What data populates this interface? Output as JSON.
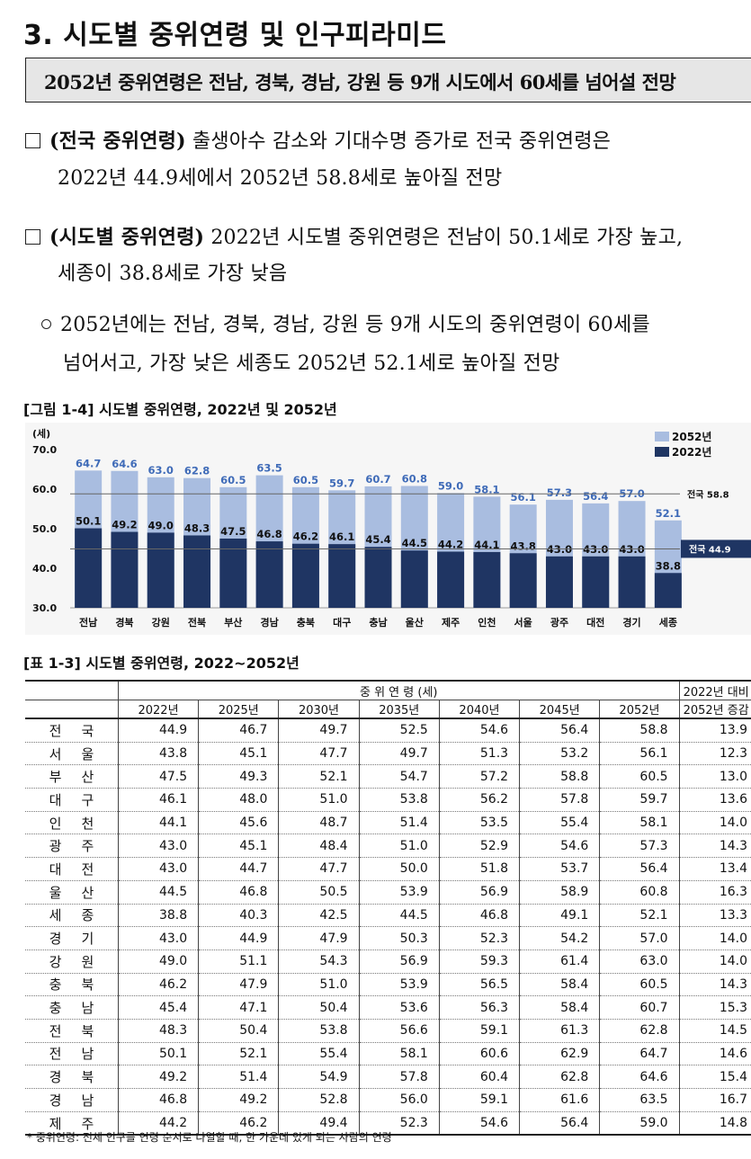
{
  "section_title": "3. 시도별 중위연령 및 인구피라미드",
  "summary": "2052년 중위연령은 전남, 경북, 경남, 강원 등 9개 시도에서 60세를 넘어설 전망",
  "p1": {
    "head": "(전국 중위연령)",
    "line1": " 출생아수 감소와 기대수명 증가로 전국 중위연령은",
    "line2": "2022년 44.9세에서 2052년 58.8세로 높아질 전망"
  },
  "p2": {
    "head": "(시도별 중위연령)",
    "line1": " 2022년 시도별 중위연령은 전남이 50.1세로 가장 높고,",
    "line2": "세종이 38.8세로 가장 낮음"
  },
  "p3": {
    "line1": "2052년에는 전남, 경북, 경남, 강원 등 9개 시도의 중위연령이 60세를",
    "line2": "넘어서고, 가장 낮은 세종도 2052년 52.1세로 높아질 전망"
  },
  "figure_title": "[그림 1-4] 시도별 중위연령, 2022년 및 2052년",
  "chart_data": {
    "type": "bar",
    "unit": "(세)",
    "categories": [
      "전남",
      "경북",
      "강원",
      "전북",
      "부산",
      "경남",
      "충북",
      "대구",
      "충남",
      "울산",
      "제주",
      "인천",
      "서울",
      "광주",
      "대전",
      "경기",
      "세종"
    ],
    "series": [
      {
        "name": "2052년",
        "color": "#a9bde0",
        "values": [
          64.7,
          64.6,
          63.0,
          62.8,
          60.5,
          63.5,
          60.5,
          59.7,
          60.7,
          60.8,
          59.0,
          58.1,
          56.1,
          57.3,
          56.4,
          57.0,
          52.1
        ]
      },
      {
        "name": "2022년",
        "color": "#1f3563",
        "values": [
          50.1,
          49.2,
          49.0,
          48.3,
          47.5,
          46.8,
          46.2,
          46.1,
          45.4,
          44.5,
          44.2,
          44.1,
          43.8,
          43.0,
          43.0,
          43.0,
          38.8
        ]
      }
    ],
    "ylim": [
      30.0,
      70.0
    ],
    "yticks": [
      "30.0",
      "40.0",
      "50.0",
      "60.0",
      "70.0"
    ],
    "reference_lines": [
      {
        "label": "전국 58.8",
        "value": 58.8
      },
      {
        "label": "전국 44.9",
        "value": 44.9
      }
    ],
    "legend_position": "top-right"
  },
  "table_title": "[표 1-3] 시도별 중위연령, 2022~2052년",
  "table": {
    "group_header": "중 위 연 령 (세)",
    "last_header_line1": "2022년 대비",
    "last_header_line2": "2052년 증감",
    "years": [
      "2022년",
      "2025년",
      "2030년",
      "2035년",
      "2040년",
      "2045년",
      "2052년"
    ],
    "rows": [
      {
        "region": "전국",
        "values": [
          "44.9",
          "46.7",
          "49.7",
          "52.5",
          "54.6",
          "56.4",
          "58.8"
        ],
        "diff": "13.9"
      },
      {
        "region": "서울",
        "values": [
          "43.8",
          "45.1",
          "47.7",
          "49.7",
          "51.3",
          "53.2",
          "56.1"
        ],
        "diff": "12.3"
      },
      {
        "region": "부산",
        "values": [
          "47.5",
          "49.3",
          "52.1",
          "54.7",
          "57.2",
          "58.8",
          "60.5"
        ],
        "diff": "13.0"
      },
      {
        "region": "대구",
        "values": [
          "46.1",
          "48.0",
          "51.0",
          "53.8",
          "56.2",
          "57.8",
          "59.7"
        ],
        "diff": "13.6"
      },
      {
        "region": "인천",
        "values": [
          "44.1",
          "45.6",
          "48.7",
          "51.4",
          "53.5",
          "55.4",
          "58.1"
        ],
        "diff": "14.0"
      },
      {
        "region": "광주",
        "values": [
          "43.0",
          "45.1",
          "48.4",
          "51.0",
          "52.9",
          "54.6",
          "57.3"
        ],
        "diff": "14.3"
      },
      {
        "region": "대전",
        "values": [
          "43.0",
          "44.7",
          "47.7",
          "50.0",
          "51.8",
          "53.7",
          "56.4"
        ],
        "diff": "13.4"
      },
      {
        "region": "울산",
        "values": [
          "44.5",
          "46.8",
          "50.5",
          "53.9",
          "56.9",
          "58.9",
          "60.8"
        ],
        "diff": "16.3"
      },
      {
        "region": "세종",
        "values": [
          "38.8",
          "40.3",
          "42.5",
          "44.5",
          "46.8",
          "49.1",
          "52.1"
        ],
        "diff": "13.3"
      },
      {
        "region": "경기",
        "values": [
          "43.0",
          "44.9",
          "47.9",
          "50.3",
          "52.3",
          "54.2",
          "57.0"
        ],
        "diff": "14.0"
      },
      {
        "region": "강원",
        "values": [
          "49.0",
          "51.1",
          "54.3",
          "56.9",
          "59.3",
          "61.4",
          "63.0"
        ],
        "diff": "14.0"
      },
      {
        "region": "충북",
        "values": [
          "46.2",
          "47.9",
          "51.0",
          "53.9",
          "56.5",
          "58.4",
          "60.5"
        ],
        "diff": "14.3"
      },
      {
        "region": "충남",
        "values": [
          "45.4",
          "47.1",
          "50.4",
          "53.6",
          "56.3",
          "58.4",
          "60.7"
        ],
        "diff": "15.3"
      },
      {
        "region": "전북",
        "values": [
          "48.3",
          "50.4",
          "53.8",
          "56.6",
          "59.1",
          "61.3",
          "62.8"
        ],
        "diff": "14.5"
      },
      {
        "region": "전남",
        "values": [
          "50.1",
          "52.1",
          "55.4",
          "58.1",
          "60.6",
          "62.9",
          "64.7"
        ],
        "diff": "14.6"
      },
      {
        "region": "경북",
        "values": [
          "49.2",
          "51.4",
          "54.9",
          "57.8",
          "60.4",
          "62.8",
          "64.6"
        ],
        "diff": "15.4"
      },
      {
        "region": "경남",
        "values": [
          "46.8",
          "49.2",
          "52.8",
          "56.0",
          "59.1",
          "61.6",
          "63.5"
        ],
        "diff": "16.7"
      },
      {
        "region": "제주",
        "values": [
          "44.2",
          "46.2",
          "49.4",
          "52.3",
          "54.6",
          "56.4",
          "59.0"
        ],
        "diff": "14.8"
      }
    ]
  },
  "footnote": "* 중위연령: 전체 인구를 연령 순서로 나열할 때, 한 가운데 있게 되는 사람의 연령"
}
